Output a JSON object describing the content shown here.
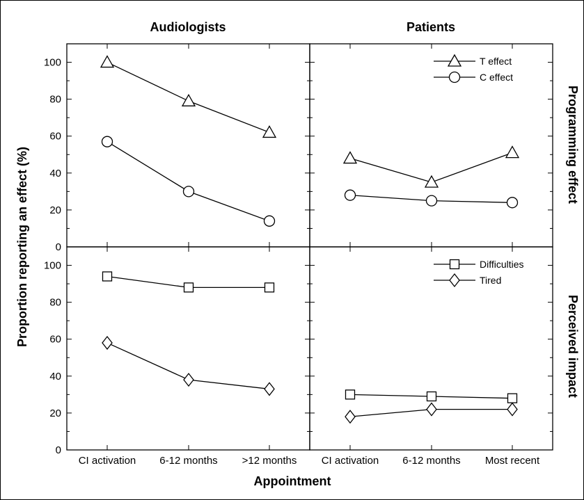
{
  "chart_data": {
    "type": "line",
    "layout": "2x2 grid of panels",
    "columns": [
      "Audiologists",
      "Patients"
    ],
    "rows": [
      "Programming effect",
      "Perceived impact"
    ],
    "xlabel": "Appointment",
    "ylabel": "Proportion reporting an effect  (%)",
    "ylim": [
      0,
      110
    ],
    "yticks": [
      0,
      20,
      40,
      60,
      80,
      100
    ],
    "grid": false,
    "panels": [
      {
        "row": 0,
        "col": 0,
        "categories": [
          "CI activation",
          "6-12 months",
          ">12 months"
        ],
        "legend": null,
        "series": [
          {
            "name": "T effect",
            "marker": "triangle",
            "values": [
              100,
              79,
              62
            ]
          },
          {
            "name": "C effect",
            "marker": "circle",
            "values": [
              57,
              30,
              14
            ]
          }
        ]
      },
      {
        "row": 0,
        "col": 1,
        "categories": [
          "CI activation",
          "6-12 months",
          "Most recent"
        ],
        "legend": "top-right",
        "series": [
          {
            "name": "T effect",
            "marker": "triangle",
            "values": [
              48,
              35,
              51
            ]
          },
          {
            "name": "C effect",
            "marker": "circle",
            "values": [
              28,
              25,
              24
            ]
          }
        ]
      },
      {
        "row": 1,
        "col": 0,
        "categories": [
          "CI activation",
          "6-12 months",
          ">12 months"
        ],
        "legend": null,
        "series": [
          {
            "name": "Difficulties",
            "marker": "square",
            "values": [
              94,
              88,
              88
            ]
          },
          {
            "name": "Tired",
            "marker": "diamond",
            "values": [
              58,
              38,
              33
            ]
          }
        ]
      },
      {
        "row": 1,
        "col": 1,
        "categories": [
          "CI activation",
          "6-12 months",
          "Most recent"
        ],
        "legend": "top-right",
        "series": [
          {
            "name": "Difficulties",
            "marker": "square",
            "values": [
              30,
              29,
              28
            ]
          },
          {
            "name": "Tired",
            "marker": "diamond",
            "values": [
              18,
              22,
              22
            ]
          }
        ]
      }
    ]
  }
}
